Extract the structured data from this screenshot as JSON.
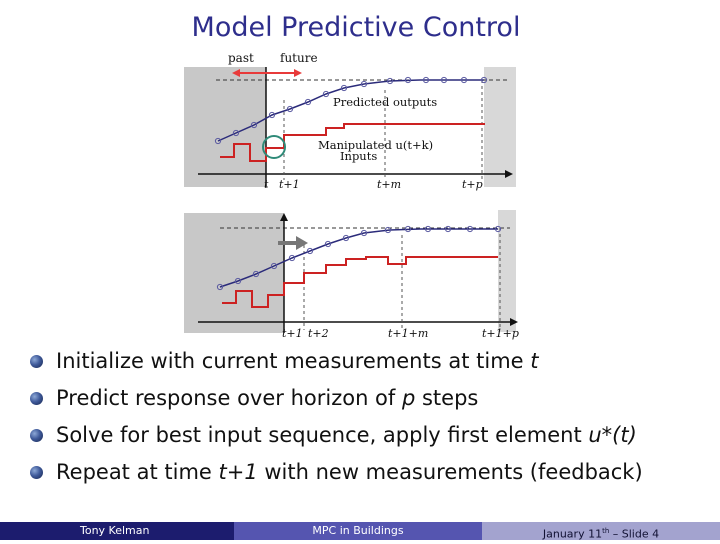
{
  "slide": {
    "title": "Model Predictive Control"
  },
  "figure": {
    "top": {
      "past_label": "past",
      "future_label": "future",
      "predicted_outputs_label": "Predicted outputs",
      "manipulated_line1": "Manipulated u(t+k)",
      "manipulated_line2": "Inputs",
      "ticks": [
        "t",
        "t+1",
        "t+m",
        "t+p"
      ]
    },
    "bottom": {
      "ticks": [
        "t+1",
        "t+2",
        "t+1+m",
        "t+1+p"
      ]
    },
    "colors": {
      "output_line": "#2b2b7a",
      "input_line": "#cc2222",
      "shade": "#c8c8c8",
      "arrow_red": "#e83a3a",
      "circle": "#2f8a78"
    }
  },
  "bullets": [
    {
      "pre": "Initialize with current measurements at time ",
      "em": "t",
      "post": ""
    },
    {
      "pre": "Predict response over horizon of ",
      "em": "p",
      "post": " steps"
    },
    {
      "pre": "Solve for best input sequence, apply first element ",
      "em": "u*(t)",
      "post": ""
    },
    {
      "pre": "Repeat at time ",
      "em": "t+1",
      "post": " with new measurements (feedback)"
    }
  ],
  "footer": {
    "author": "Tony Kelman",
    "talk": "MPC in Buildings",
    "date_pre": "January 11",
    "date_sup": "th",
    "date_post": " – Slide 4"
  }
}
